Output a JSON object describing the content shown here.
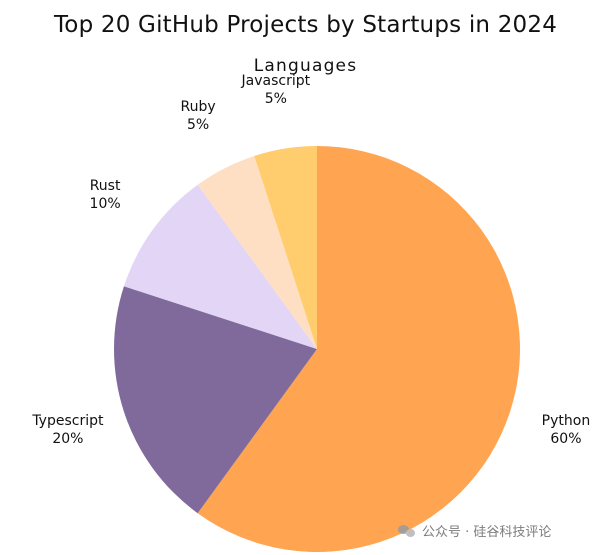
{
  "chart_data": {
    "type": "pie",
    "title": "Top 20 GitHub Projects by Startups in 2024",
    "subtitle": "Languages",
    "slices": [
      {
        "label": "Python",
        "percent_label": "60%",
        "value": 60,
        "color": "#FFA552"
      },
      {
        "label": "Typescript",
        "percent_label": "20%",
        "value": 20,
        "color": "#806A9C"
      },
      {
        "label": "Rust",
        "percent_label": "10%",
        "value": 10,
        "color": "#E3D5F5"
      },
      {
        "label": "Ruby",
        "percent_label": "5%",
        "value": 5,
        "color": "#FFDFC3"
      },
      {
        "label": "Javascript",
        "percent_label": "5%",
        "value": 5,
        "color": "#FFCC6E"
      }
    ],
    "start_position": "top",
    "direction": "clockwise"
  },
  "watermark": {
    "icon": "wechat-icon",
    "text": "公众号 · 硅谷科技评论"
  }
}
